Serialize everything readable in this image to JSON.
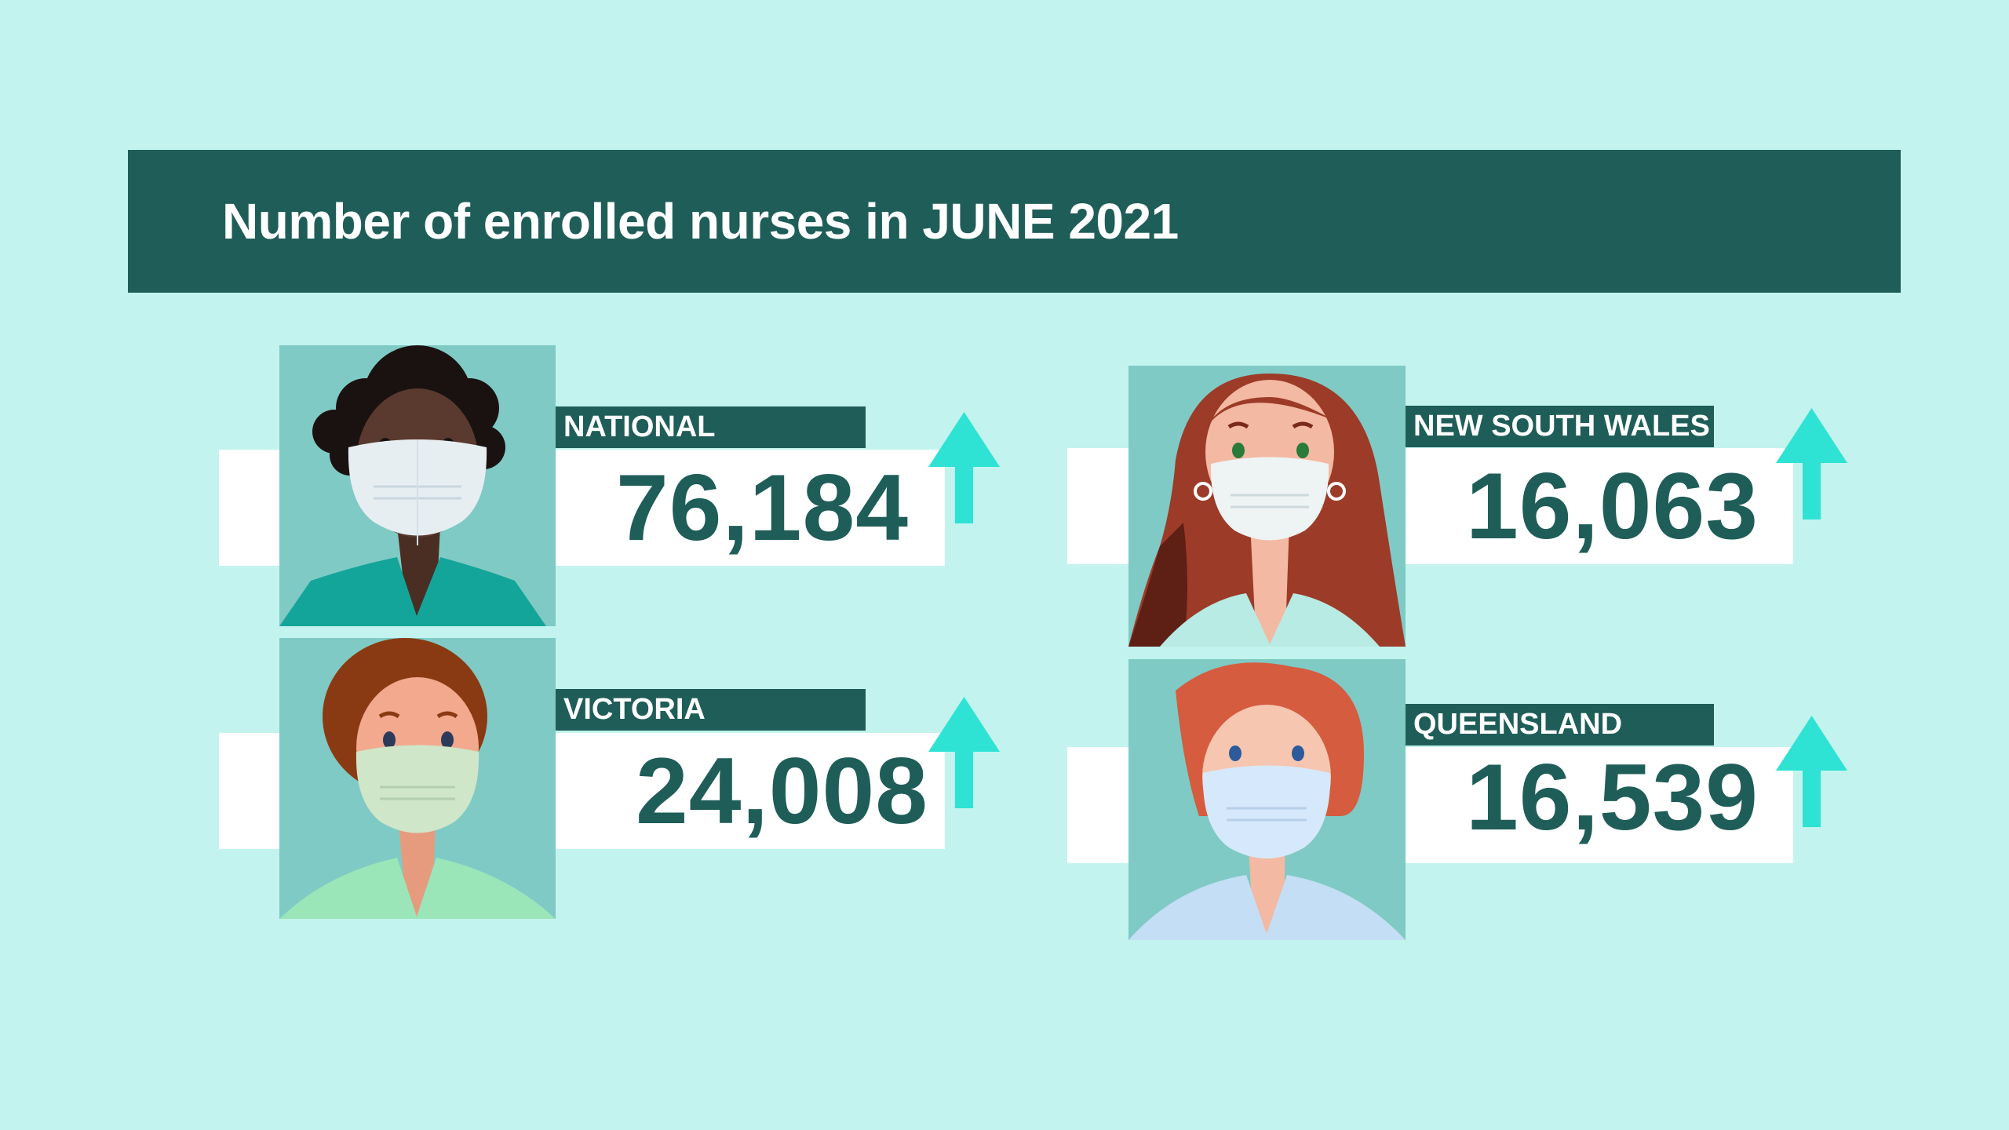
{
  "title": "Number of enrolled nurses in JUNE 2021",
  "accent_color": "#1f5d58",
  "arrow_color": "#2ee3d4",
  "background_color": "#c2f3ee",
  "stats": [
    {
      "label": "NATIONAL",
      "value": "76,184",
      "trend": "up-arrow-icon"
    },
    {
      "label": "VICTORIA",
      "value": "24,008",
      "trend": "up-arrow-icon"
    },
    {
      "label": "NEW SOUTH WALES",
      "value": "16,063",
      "trend": "up-arrow-icon"
    },
    {
      "label": "QUEENSLAND",
      "value": "16,539",
      "trend": "up-arrow-icon"
    }
  ]
}
